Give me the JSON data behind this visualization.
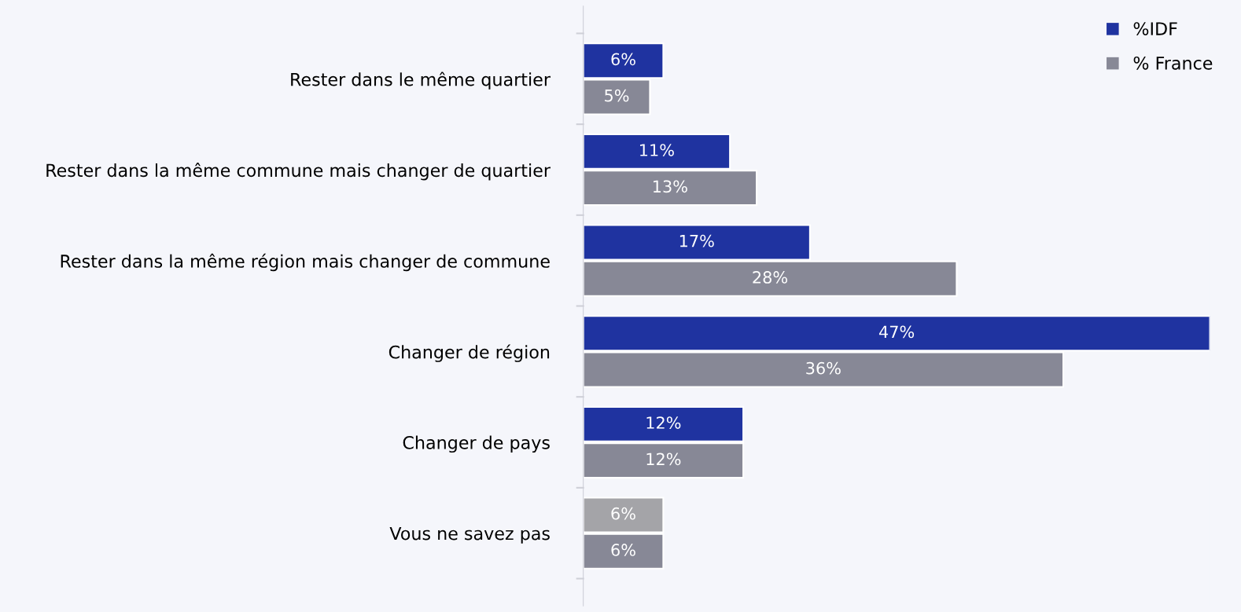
{
  "chart_data": {
    "type": "bar",
    "orientation": "horizontal",
    "categories": [
      "Rester dans le même quartier",
      "Rester dans la même commune mais changer de quartier",
      "Rester dans la même région mais changer de commune",
      "Changer de région",
      "Changer de pays",
      "Vous ne savez pas"
    ],
    "series": [
      {
        "name": "%IDF",
        "color": "#1f33a0",
        "colors": [
          "#1f33a0",
          "#1f33a0",
          "#1f33a0",
          "#1f33a0",
          "#1f33a0",
          "#a4a4a8"
        ],
        "values": [
          6,
          11,
          17,
          47,
          12,
          6
        ],
        "value_labels": [
          "6%",
          "11%",
          "17%",
          "47%",
          "12%",
          "6%"
        ]
      },
      {
        "name": "% France",
        "color": "#878896",
        "values": [
          5,
          13,
          28,
          36,
          12,
          6
        ],
        "value_labels": [
          "5%",
          "13%",
          "28%",
          "36%",
          "12%",
          "6%"
        ]
      }
    ],
    "data_labels": true,
    "legend": "top right",
    "grid": false
  }
}
